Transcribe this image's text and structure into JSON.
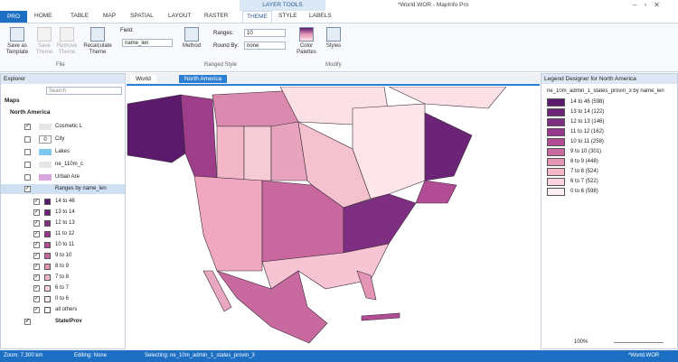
{
  "title_bar": {
    "context": "LAYER TOOLS",
    "title": "*World.WOR - MapInfo Pro"
  },
  "tabs": [
    "PRO",
    "HOME",
    "TABLE",
    "MAP",
    "SPATIAL",
    "LAYOUT",
    "RASTER",
    "THEME",
    "STYLE",
    "LABELS"
  ],
  "ribbon": {
    "save_template": "Save as Template",
    "save_theme": "Save Theme",
    "remove_theme": "Remove Theme",
    "recalculate": "Recalculate Theme",
    "field_label": "Field:",
    "field_value": "name_len",
    "method": "Method",
    "ranges_label": "Ranges:",
    "ranges_value": "10",
    "round_label": "Round By:",
    "round_value": "none",
    "palettes": "Color Palettes",
    "styles": "Styles",
    "group_file": "File",
    "group_ranged": "Ranged Style",
    "group_modify": "Modify"
  },
  "explorer": {
    "title": "Explorer",
    "search": "Search",
    "maps": "Maps",
    "map_name": "North America",
    "layers": [
      "Cosmetic L",
      "City",
      "Lakes",
      "ne_110m_c",
      "Urban Are"
    ],
    "city_badge": "0",
    "theme": "Ranges by name_len",
    "ranges": [
      "14 to 46",
      "13 to 14",
      "12 to 13",
      "11 to 12",
      "10 to 11",
      "9 to 10",
      "8 to 9",
      "7 to 8",
      "6 to 7",
      "0 to 6",
      "all others"
    ],
    "last_layer": "State/Prov"
  },
  "map_tabs": [
    "World",
    "North America"
  ],
  "legend": {
    "title": "Legend Designer for North America",
    "heading": "ne_10m_admin_1_states_provin_3 by name_len",
    "rows": [
      "14 to 46 (598)",
      "13 to 14 (122)",
      "12 to 13 (146)",
      "11 to 12 (162)",
      "10 to 11 (258)",
      "9 to 10 (301)",
      "8 to 9 (448)",
      "7 to 8 (524)",
      "6 to 7 (522)",
      "0 to 6 (598)"
    ],
    "zoom": "100%"
  },
  "status": {
    "zoom": "Zoom: 7,300 km",
    "editing": "Editing: None",
    "selecting": "Selecting: ne_10m_admin_1_states_provin_3",
    "workspace": "*World.WOR"
  }
}
